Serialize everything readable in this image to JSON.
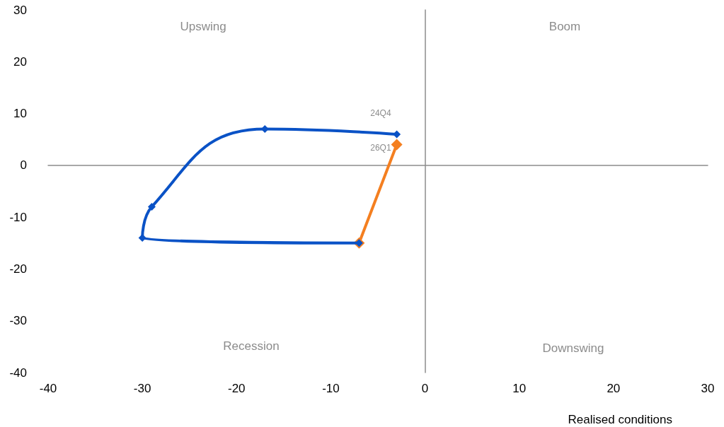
{
  "chart_data": {
    "type": "line",
    "xlabel": "Realised conditions",
    "xlim": [
      -40,
      30
    ],
    "xticks": [
      -40,
      -30,
      -20,
      -10,
      0,
      10,
      20,
      30
    ],
    "ylim": [
      -40,
      30
    ],
    "yticks": [
      -40,
      -30,
      -20,
      -10,
      0,
      10,
      20,
      30
    ],
    "marker": "diamond",
    "line_style": "solid",
    "series": [
      {
        "color": "#f47f20",
        "x": [
          -7,
          -3
        ],
        "values": [
          -15,
          4
        ]
      },
      {
        "color": "#0a52c6",
        "x": [
          -3,
          -17,
          -29,
          -30,
          -7
        ],
        "values": [
          6,
          7,
          -8,
          -14,
          -15
        ]
      }
    ],
    "annotations": [
      "Upswing",
      "Boom",
      "Recession",
      "Downswing",
      {
        "text": "24Q4",
        "x": -3,
        "y": 6
      },
      {
        "text": "26Q1",
        "x": -3,
        "y": 4
      }
    ]
  }
}
